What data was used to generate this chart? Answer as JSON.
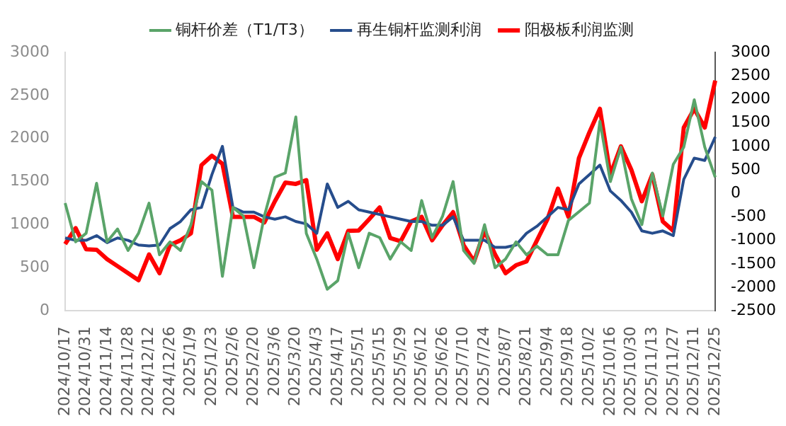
{
  "chart_data": {
    "type": "line",
    "legend": "top",
    "grid": false,
    "marker": "none",
    "line_style": "solid",
    "categories": [
      "2024/10/17",
      null,
      "2024/10/31",
      null,
      "2024/11/14",
      null,
      "2024/11/28",
      null,
      "2024/12/12",
      null,
      "2024/12/26",
      null,
      "2025/1/9",
      null,
      "2025/1/23",
      null,
      "2025/2/6",
      null,
      "2025/2/20",
      null,
      "2025/3/6",
      null,
      "2025/3/20",
      null,
      "2025/4/3",
      null,
      "2025/4/17",
      null,
      "2025/5/1",
      null,
      "2025/5/15",
      null,
      "2025/5/29",
      null,
      "2025/6/12",
      null,
      "2025/6/26",
      null,
      "2025/7/10",
      null,
      "2025/7/24",
      null,
      "2025/8/7",
      null,
      "2025/8/21",
      null,
      "2025/9/4",
      null,
      "2025/9/18",
      null,
      "2025/10/2",
      null,
      "2025/10/16",
      null,
      "2025/10/30",
      null,
      "2025/11/13",
      null,
      "2025/11/27",
      null,
      "2025/12/11",
      null,
      "2025/12/25"
    ],
    "ylim": [
      0,
      3000
    ],
    "yticks": [
      0,
      500,
      1000,
      1500,
      2000,
      2500,
      3000
    ],
    "y2lim": [
      -2500,
      3000
    ],
    "y2ticks": [
      -2500,
      -2000,
      -1500,
      -1000,
      -500,
      0,
      500,
      1000,
      1500,
      2000,
      2500,
      3000
    ],
    "series": [
      {
        "name": "铜杆价差（T1/T3）",
        "color": "#5aa469",
        "values": [
          1250,
          800,
          900,
          1480,
          800,
          950,
          700,
          900,
          1250,
          650,
          800,
          700,
          1000,
          1500,
          1400,
          400,
          1200,
          1100,
          500,
          1100,
          1550,
          1600,
          2250,
          900,
          600,
          250,
          350,
          900,
          500,
          900,
          850,
          600,
          800,
          700,
          1280,
          850,
          1100,
          1500,
          700,
          550,
          1000,
          500,
          600,
          800,
          650,
          750,
          650,
          650,
          1050,
          1150,
          1250,
          2200,
          1500,
          1900,
          1300,
          1000,
          1600,
          1100,
          1700,
          1900,
          2450,
          1900,
          1550
        ]
      },
      {
        "name": "再生铜杆监测利润",
        "color": "#264d8c",
        "axis": "y2",
        "values": [
          -950,
          -1000,
          -1000,
          -900,
          -1050,
          -950,
          -1000,
          -1100,
          -1120,
          -1100,
          -750,
          -600,
          -350,
          -300,
          400,
          1000,
          -300,
          -400,
          -400,
          -500,
          -550,
          -500,
          -600,
          -650,
          -850,
          200,
          -300,
          -170,
          -350,
          -400,
          -450,
          -500,
          -550,
          -600,
          -600,
          -680,
          -680,
          -500,
          -1000,
          -1000,
          -1000,
          -1150,
          -1150,
          -1100,
          -850,
          -700,
          -500,
          -300,
          -350,
          200,
          400,
          600,
          50,
          -150,
          -400,
          -800,
          -850,
          -800,
          -900,
          300,
          750,
          700,
          1200
        ]
      },
      {
        "name": "阳极板利润监测",
        "color": "#ff0000",
        "axis": "y2",
        "values": [
          -1080,
          -740,
          -1190,
          -1200,
          -1400,
          -1550,
          -1700,
          -1850,
          -1300,
          -1700,
          -1100,
          -1000,
          -850,
          600,
          800,
          630,
          -500,
          -500,
          -500,
          -620,
          -170,
          230,
          200,
          280,
          -1200,
          -850,
          -1400,
          -800,
          -790,
          -550,
          -300,
          -950,
          -1020,
          -600,
          -500,
          -1000,
          -680,
          -400,
          -1100,
          -1450,
          -800,
          -1300,
          -1700,
          -1530,
          -1450,
          -1000,
          -550,
          100,
          -500,
          750,
          1300,
          1800,
          400,
          1000,
          500,
          -170,
          400,
          -600,
          -800,
          1400,
          1800,
          1400,
          2400
        ]
      }
    ]
  }
}
